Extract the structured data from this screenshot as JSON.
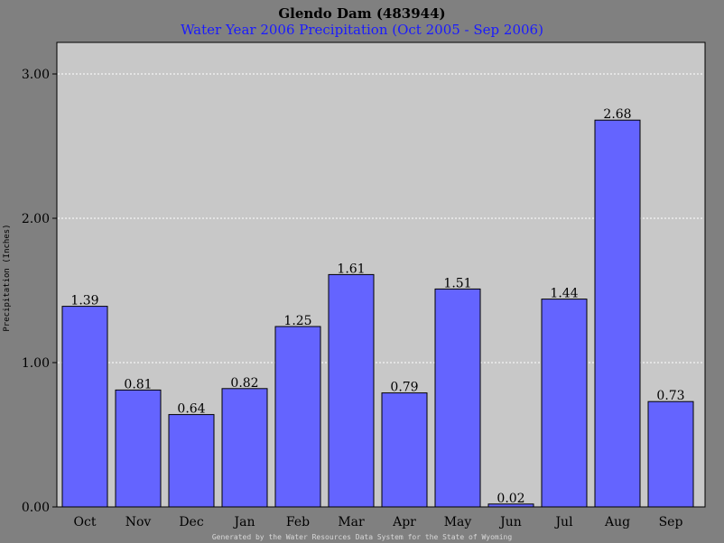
{
  "chart_data": {
    "type": "bar",
    "title": "Glendo Dam (483944)",
    "subtitle": "Water Year 2006 Precipitation (Oct 2005 - Sep 2006)",
    "xlabel": "",
    "ylabel": "Precipitation (Inches)",
    "ylim": [
      0,
      3.0
    ],
    "yticks": [
      "0.00",
      "1.00",
      "2.00",
      "3.00"
    ],
    "grid": true,
    "categories": [
      "Oct",
      "Nov",
      "Dec",
      "Jan",
      "Feb",
      "Mar",
      "Apr",
      "May",
      "Jun",
      "Jul",
      "Aug",
      "Sep"
    ],
    "values": [
      1.39,
      0.81,
      0.64,
      0.82,
      1.25,
      1.61,
      0.79,
      1.51,
      0.02,
      1.44,
      2.68,
      0.73
    ],
    "value_labels": [
      "1.39",
      "0.81",
      "0.64",
      "0.82",
      "1.25",
      "1.61",
      "0.79",
      "1.51",
      "0.02",
      "1.44",
      "2.68",
      "0.73"
    ],
    "colors": {
      "bar": "#6464ff",
      "plot_bg": "#c8c8c8",
      "page_bg": "#808080",
      "subtitle": "#1a1aff"
    }
  },
  "footer": "Generated by the Water Resources Data System for the State of Wyoming"
}
